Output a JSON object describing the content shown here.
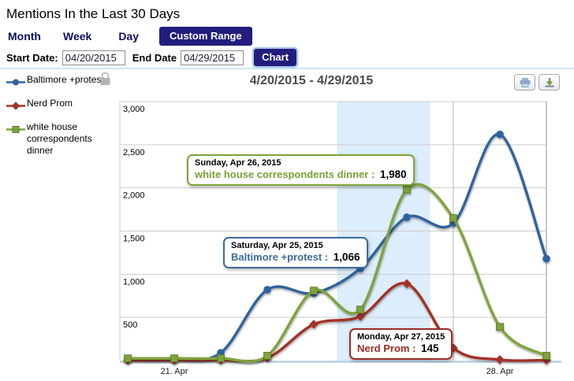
{
  "header": {
    "title": "Mentions In the Last 30 Days"
  },
  "tabs": {
    "items": [
      {
        "label": "Month",
        "active": false
      },
      {
        "label": "Week",
        "active": false
      },
      {
        "label": "Day",
        "active": false
      },
      {
        "label": "Custom Range",
        "active": true
      }
    ]
  },
  "date_controls": {
    "start_label": "Start Date:",
    "start_value": "04/20/2015",
    "end_label": "End Date",
    "end_value": "04/29/2015",
    "chart_button_label": "Chart"
  },
  "legend": {
    "items": [
      {
        "label": "Baltimore +protest",
        "shape": "circle",
        "color": "#2f639e"
      },
      {
        "label": "Nerd Prom",
        "shape": "diamond",
        "color": "#a23328"
      },
      {
        "label": "white house correspondents dinner",
        "shape": "square",
        "color": "#7fa33c"
      }
    ],
    "lock_icon": "lock-icon"
  },
  "chart": {
    "title": "4/20/2015 - 4/29/2015",
    "toolbar_icons": [
      "print-icon",
      "download-icon"
    ],
    "colors": {
      "weekend_band": "#dcedfb",
      "gridline": "#cccccc",
      "cursor_line": "#c2c2c2",
      "axis_line": "#b7cfe2"
    }
  },
  "chart_data": {
    "type": "line",
    "x_dates": [
      "4/20/2015",
      "4/21/2015",
      "4/22/2015",
      "4/23/2015",
      "4/24/2015",
      "4/25/2015",
      "4/26/2015",
      "4/27/2015",
      "4/28/2015",
      "4/29/2015"
    ],
    "series": [
      {
        "name": "Baltimore +protest",
        "color": "#2f639e",
        "marker": "circle",
        "values": [
          15,
          15,
          90,
          820,
          780,
          1066,
          1660,
          1590,
          2620,
          1180
        ]
      },
      {
        "name": "Nerd Prom",
        "color": "#a23328",
        "marker": "diamond",
        "values": [
          5,
          5,
          5,
          30,
          420,
          510,
          890,
          145,
          10,
          5
        ]
      },
      {
        "name": "white house correspondents dinner",
        "color": "#7fa33c",
        "marker": "square",
        "values": [
          25,
          25,
          25,
          55,
          810,
          590,
          1980,
          1650,
          390,
          55
        ]
      }
    ],
    "ylim": [
      0,
      3000
    ],
    "yticks": [
      {
        "value": 3000,
        "label": "3,000"
      },
      {
        "value": 2500,
        "label": "2,500"
      },
      {
        "value": 2000,
        "label": "2,000"
      },
      {
        "value": 1500,
        "label": "1,500"
      },
      {
        "value": 1000,
        "label": "1,000"
      },
      {
        "value": 500,
        "label": "500"
      }
    ],
    "xticks": [
      {
        "index": 1,
        "label": "21. Apr"
      },
      {
        "index": 8,
        "label": "28. Apr"
      }
    ],
    "weekend_band": {
      "from_index": 4.5,
      "to_index": 6.5
    },
    "cursor_index": 7,
    "grid": "horizontal",
    "legend_position": "left"
  },
  "tooltips": [
    {
      "date_line": "Sunday, Apr 26, 2015",
      "series_label": "white house correspondents dinner : ",
      "value": "1,980",
      "color": "#7fa33c"
    },
    {
      "date_line": "Saturday, Apr 25, 2015",
      "series_label": "Baltimore +protest : ",
      "value": "1,066",
      "color": "#3c6ba3"
    },
    {
      "date_line": "Monday, Apr 27, 2015",
      "series_label": "Nerd Prom : ",
      "value": "145",
      "color": "#9e2b23"
    }
  ]
}
